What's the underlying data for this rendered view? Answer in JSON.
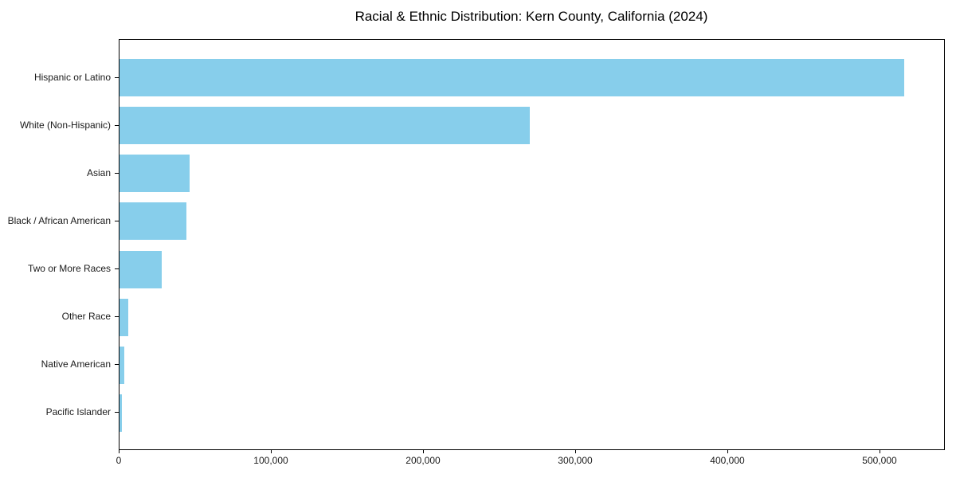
{
  "figure": {
    "title": "Racial & Ethnic Distribution: Kern County, California (2024)"
  },
  "chart_data": {
    "type": "bar",
    "orientation": "horizontal",
    "title": "Racial & Ethnic Distribution: Kern County, California (2024)",
    "categories": [
      "Hispanic or Latino",
      "White (Non-Hispanic)",
      "Asian",
      "Black / African American",
      "Two or More Races",
      "Other Race",
      "Native American",
      "Pacific Islander"
    ],
    "values": [
      517000,
      270000,
      46000,
      44000,
      28000,
      6000,
      3000,
      1700
    ],
    "xlabel": "",
    "ylabel": "",
    "xlim": [
      0,
      543000
    ],
    "xticks": {
      "values": [
        0,
        100000,
        200000,
        300000,
        400000,
        500000
      ],
      "labels": [
        "0",
        "100,000",
        "200,000",
        "300,000",
        "400,000",
        "500,000"
      ]
    },
    "bar_color": "#87CEEB",
    "axis_color": "#000000",
    "text_color": "#1a1a1a",
    "background": "#ffffff",
    "grid": false,
    "legend": "none"
  }
}
